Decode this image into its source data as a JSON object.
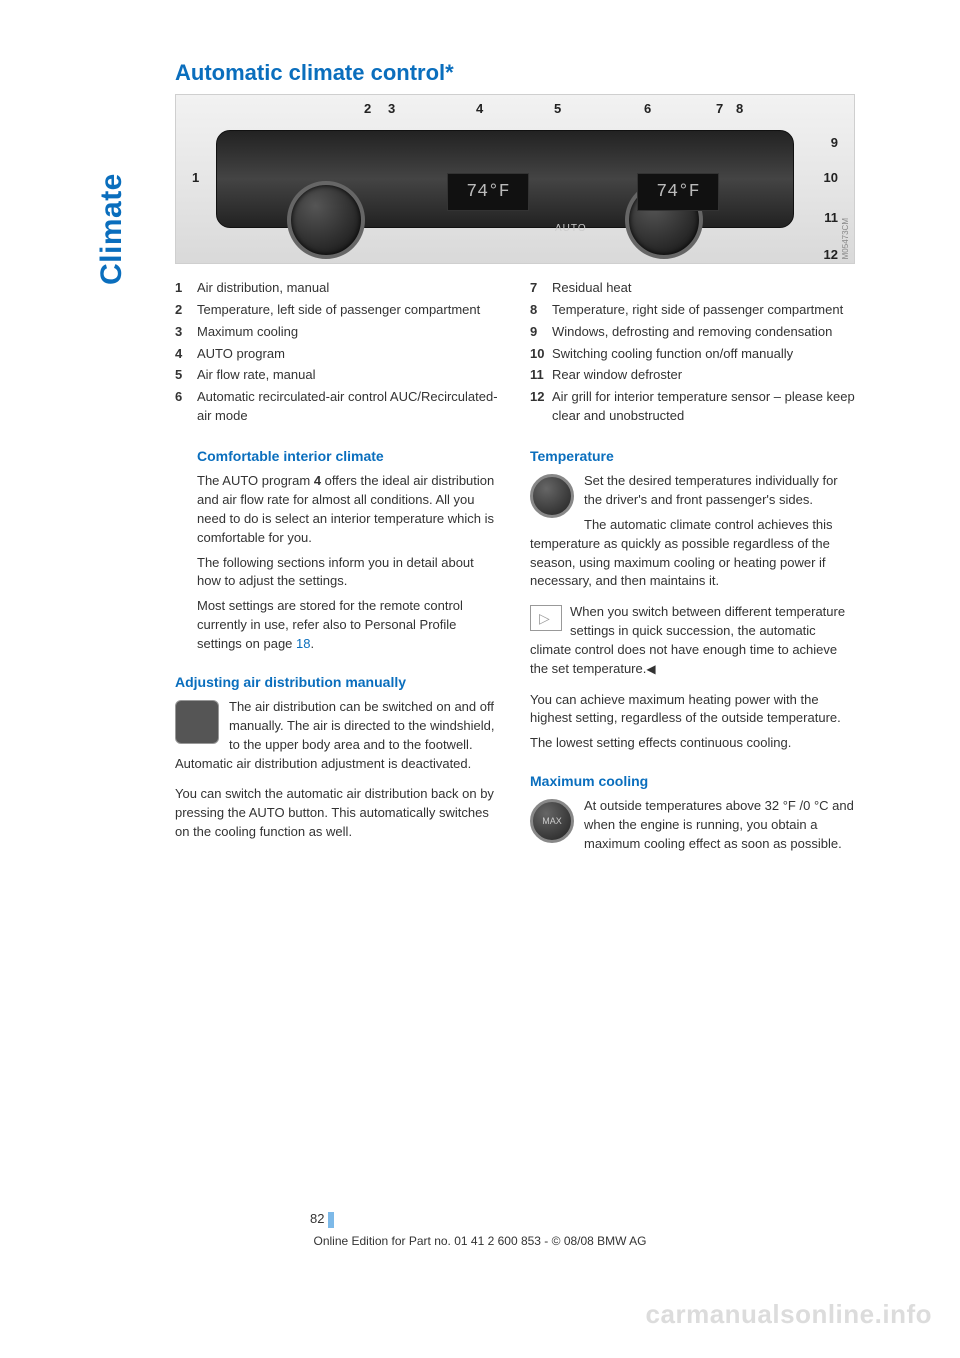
{
  "chapter": "Climate",
  "title": "Automatic climate control*",
  "panel": {
    "display_left": "74°F",
    "display_right": "74°F",
    "auto": "AUTO",
    "ref": "M05473CM",
    "callouts": {
      "c1": "1",
      "c2": "2",
      "c3": "3",
      "c4": "4",
      "c5": "5",
      "c6": "6",
      "c7": "7",
      "c8": "8",
      "c9": "9",
      "c10": "10",
      "c11": "11",
      "c12": "12"
    }
  },
  "legend_left": [
    {
      "n": "1",
      "t": "Air distribution, manual"
    },
    {
      "n": "2",
      "t": "Temperature, left side of passenger compartment"
    },
    {
      "n": "3",
      "t": "Maximum cooling"
    },
    {
      "n": "4",
      "t": "AUTO program"
    },
    {
      "n": "5",
      "t": "Air flow rate, manual"
    },
    {
      "n": "6",
      "t": "Automatic recirculated-air control AUC/Recirculated-air mode"
    }
  ],
  "legend_right": [
    {
      "n": "7",
      "t": "Residual heat"
    },
    {
      "n": "8",
      "t": "Temperature, right side of passenger compartment"
    },
    {
      "n": "9",
      "t": "Windows, defrosting and removing condensation"
    },
    {
      "n": "10",
      "t": "Switching cooling function on/off manually"
    },
    {
      "n": "11",
      "t": "Rear window defroster"
    },
    {
      "n": "12",
      "t": "Air grill for interior temperature sensor – please keep clear and unobstructed"
    }
  ],
  "left_col": {
    "h_comfort": "Comfortable interior climate",
    "p_comfort_1a": "The AUTO program ",
    "p_comfort_1b": "4",
    "p_comfort_1c": " offers the ideal air distribution and air flow rate for almost all conditions. All you need to do is select an interior temperature which is comfortable for you.",
    "p_comfort_2": "The following sections inform you in detail about how to adjust the settings.",
    "p_comfort_3a": "Most settings are stored for the remote control currently in use, refer also to Personal Profile settings on page ",
    "p_comfort_3b": "18",
    "p_comfort_3c": ".",
    "h_airdist": "Adjusting air distribution manually",
    "p_airdist_1": "The air distribution can be switched on and off manually. The air is directed to the windshield, to the upper body area and to the footwell. Automatic air distribution adjustment is deactivated.",
    "p_airdist_2": "You can switch the automatic air distribution back on by pressing the AUTO button. This automatically switches on the cooling function as well."
  },
  "right_col": {
    "h_temp": "Temperature",
    "p_temp_1": "Set the desired temperatures individually for the driver's and front passenger's sides.",
    "p_temp_2": "The automatic climate control achieves this temperature as quickly as possible regardless of the season, using maximum cooling or heating power if necessary, and then maintains it.",
    "p_temp_note": "When you switch between different temperature settings in quick succession, the automatic climate control does not have enough time to achieve the set temperature.",
    "end_mark": "◀",
    "p_temp_3": "You can achieve maximum heating power with the highest setting, regardless of the outside temperature.",
    "p_temp_4": "The lowest setting effects continuous cooling.",
    "h_max": "Maximum cooling",
    "p_max_1": "At outside temperatures above 32 °F /0 °C and when the engine is running, you obtain a maximum cooling effect as soon as possible.",
    "max_label": "MAX"
  },
  "page_number": "82",
  "footer": "Online Edition for Part no. 01 41 2 600 853 - © 08/08 BMW AG",
  "watermark": "carmanualsonline.info"
}
